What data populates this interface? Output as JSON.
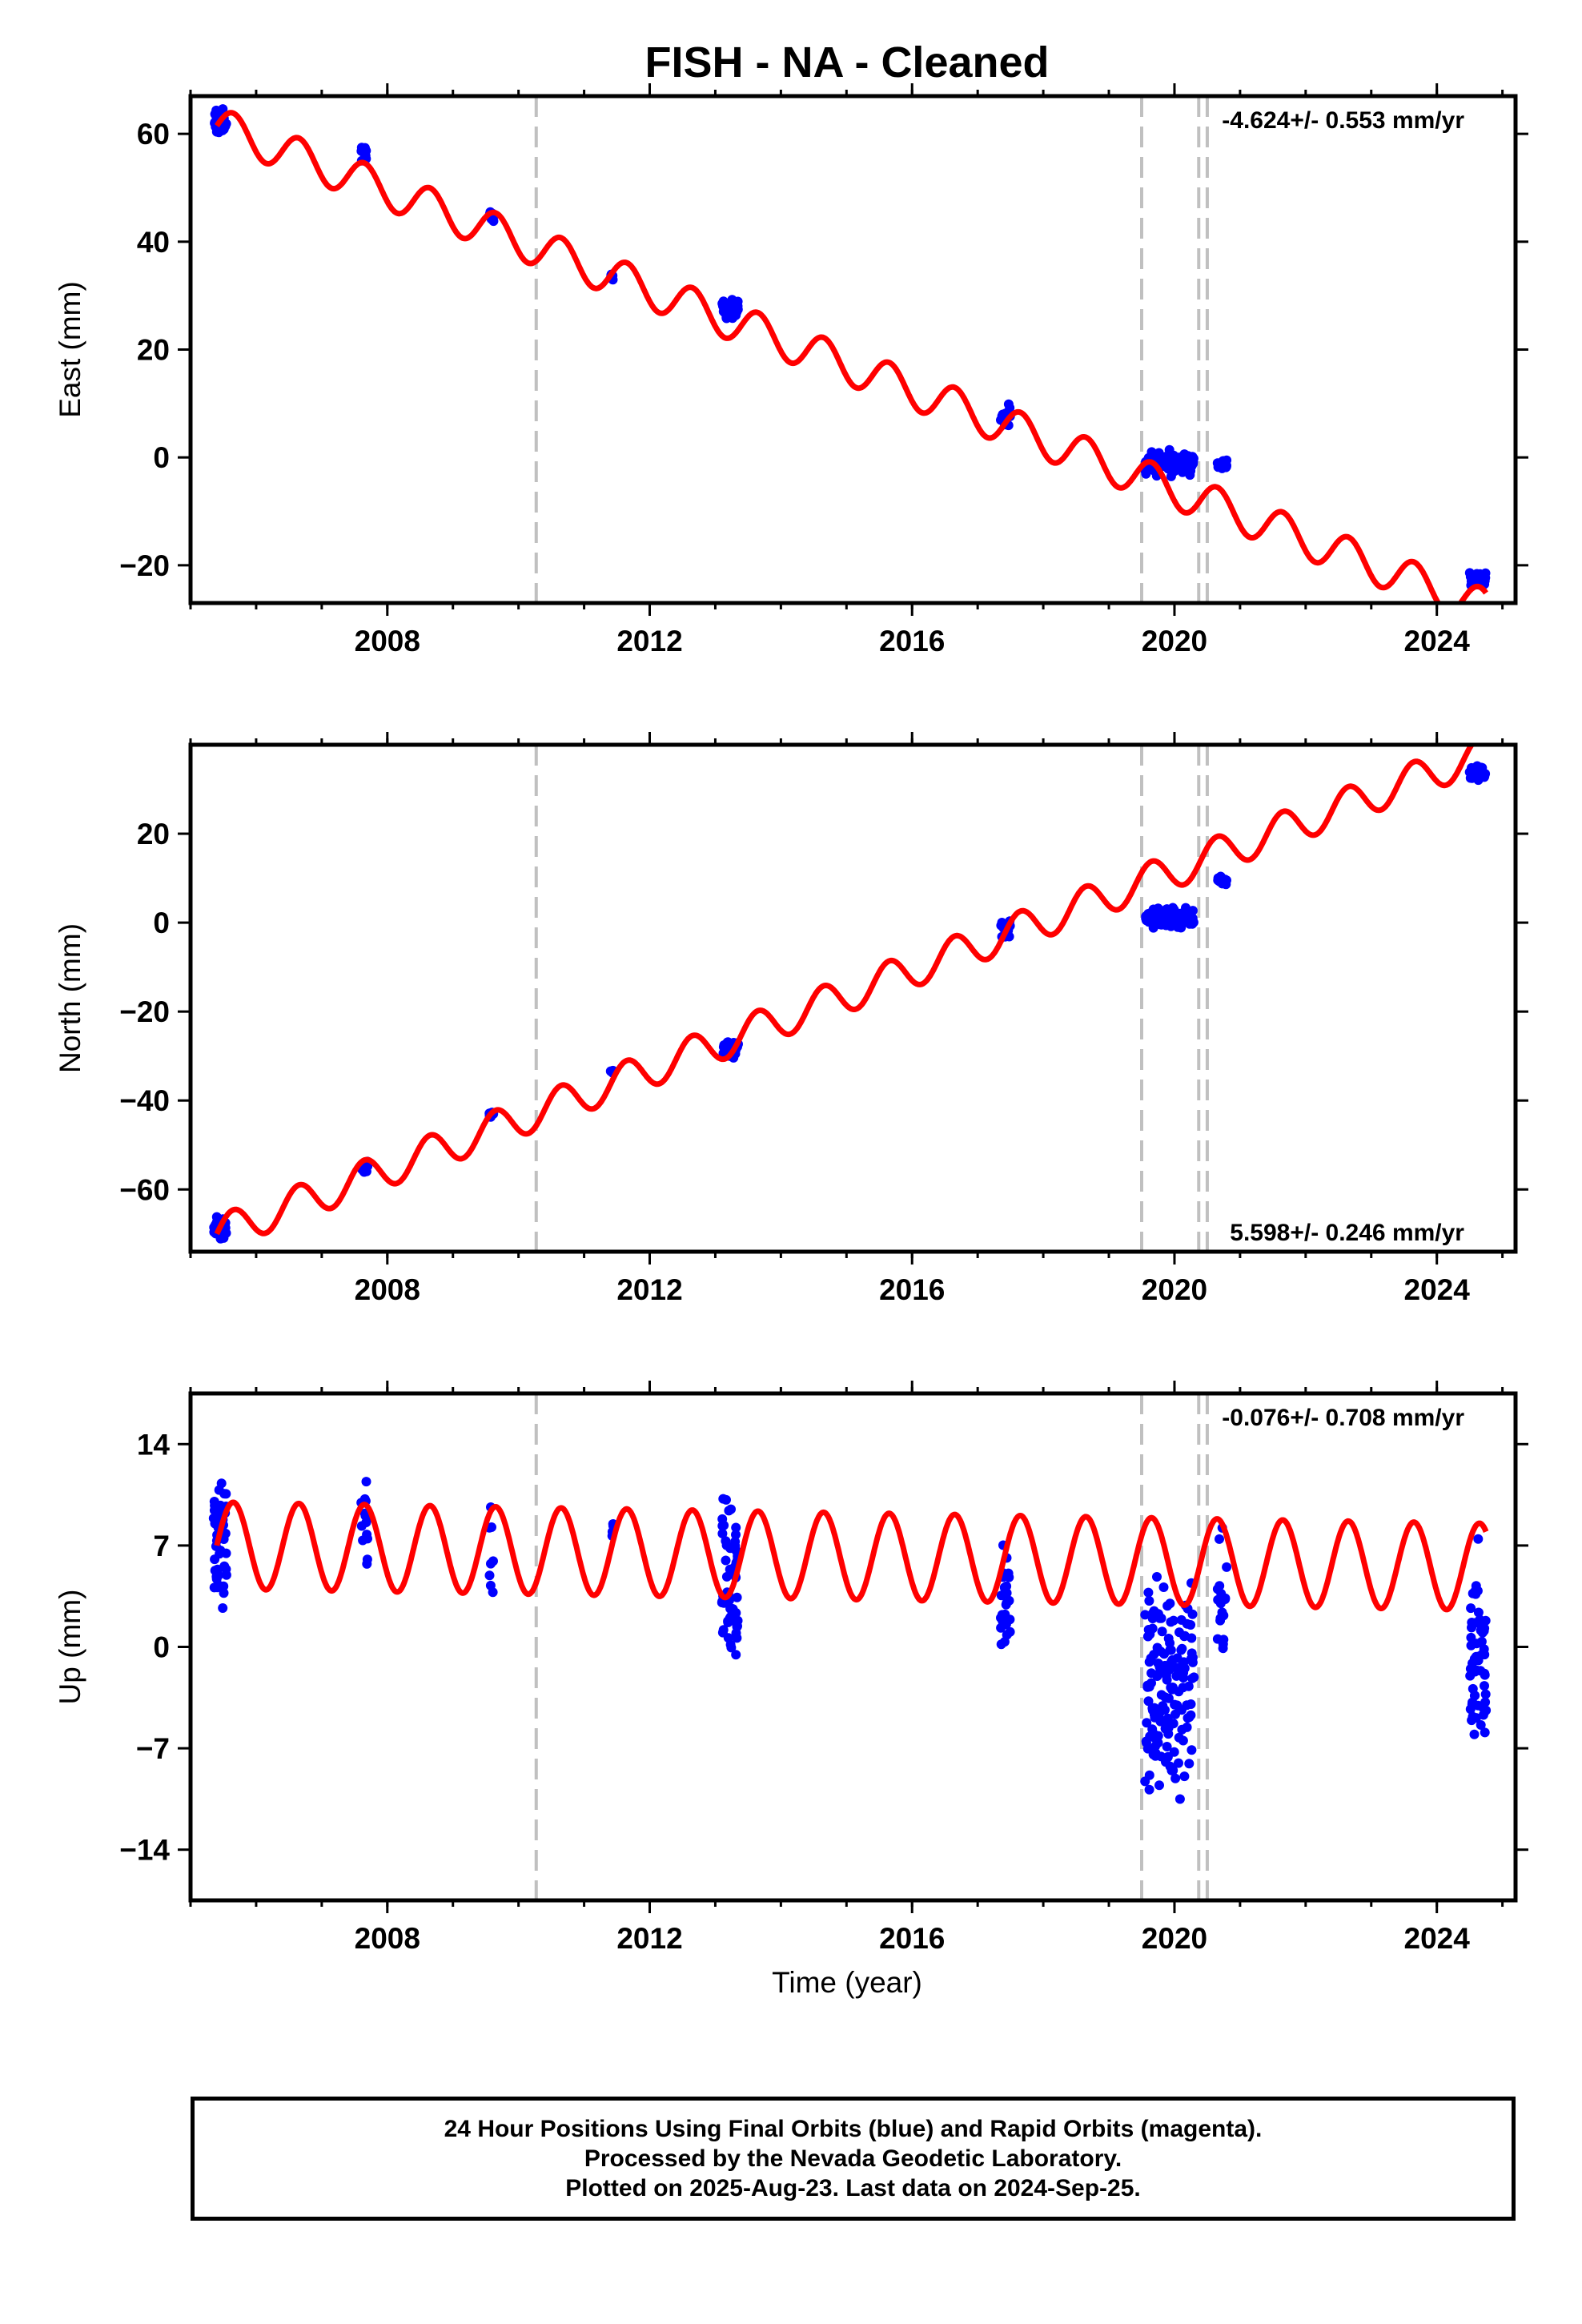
{
  "title": "FISH  - NA - Cleaned",
  "x_axis_label": "Time (year)",
  "caption": {
    "line1": "24 Hour Positions Using Final Orbits (blue) and Rapid Orbits (magenta).",
    "line2": "Processed by the Nevada Geodetic Laboratory.",
    "line3": "Plotted on 2025-Aug-23. Last data on 2024-Sep-25."
  },
  "colors": {
    "observations": "#0000ff",
    "model": "#ff0000",
    "event_lines": "#c0c0c0"
  },
  "chart_data": [
    {
      "type": "scatter",
      "ylabel": "East (mm)",
      "rate_label": "-4.624+/- 0.553 mm/yr",
      "rate_label_position": "top-right",
      "xlim": [
        2005.0,
        2025.2
      ],
      "ylim": [
        -27,
        67
      ],
      "x_ticks": [
        2008,
        2012,
        2016,
        2020,
        2024
      ],
      "y_ticks": [
        -20,
        0,
        20,
        40,
        60
      ],
      "event_lines": [
        2010.27,
        2019.5,
        2020.37,
        2020.5
      ],
      "model": {
        "trend_rate_mm_per_yr": -4.624,
        "value_at_2005_4": 61.5,
        "seasonal_amplitude": 3.5
      },
      "observation_clusters": [
        {
          "t_start": 2005.35,
          "t_end": 2005.55,
          "center": 62.0,
          "spread": 3.5,
          "count": 40
        },
        {
          "t_start": 2007.6,
          "t_end": 2007.7,
          "center": 56.5,
          "spread": 2.0,
          "count": 14
        },
        {
          "t_start": 2009.55,
          "t_end": 2009.62,
          "center": 44.5,
          "spread": 1.5,
          "count": 8
        },
        {
          "t_start": 2011.4,
          "t_end": 2011.45,
          "center": 33.5,
          "spread": 0.8,
          "count": 4
        },
        {
          "t_start": 2013.1,
          "t_end": 2013.35,
          "center": 27.5,
          "spread": 2.5,
          "count": 30
        },
        {
          "t_start": 2017.35,
          "t_end": 2017.5,
          "center": 8.0,
          "spread": 3.0,
          "count": 18
        },
        {
          "t_start": 2019.55,
          "t_end": 2020.3,
          "center": -1.0,
          "spread": 3.0,
          "count": 110
        },
        {
          "t_start": 2020.65,
          "t_end": 2020.8,
          "center": -1.5,
          "spread": 1.5,
          "count": 14
        },
        {
          "t_start": 2024.5,
          "t_end": 2024.75,
          "center": -22.5,
          "spread": 2.0,
          "count": 45
        }
      ]
    },
    {
      "type": "scatter",
      "ylabel": "North (mm)",
      "rate_label": "5.598+/- 0.246 mm/yr",
      "rate_label_position": "bottom-right",
      "xlim": [
        2005.0,
        2025.2
      ],
      "ylim": [
        -74,
        40
      ],
      "x_ticks": [
        2008,
        2012,
        2016,
        2020,
        2024
      ],
      "y_ticks": [
        -60,
        -40,
        -20,
        0,
        20
      ],
      "event_lines": [
        2010.27,
        2019.5,
        2020.37,
        2020.5
      ],
      "model": {
        "trend_rate_mm_per_yr": 5.598,
        "value_at_2005_4": -70.0,
        "seasonal_amplitude": 4.0
      },
      "observation_clusters": [
        {
          "t_start": 2005.35,
          "t_end": 2005.55,
          "center": -68.5,
          "spread": 3.0,
          "count": 35
        },
        {
          "t_start": 2007.6,
          "t_end": 2007.7,
          "center": -55.0,
          "spread": 2.0,
          "count": 12
        },
        {
          "t_start": 2009.55,
          "t_end": 2009.62,
          "center": -43.0,
          "spread": 1.5,
          "count": 8
        },
        {
          "t_start": 2011.4,
          "t_end": 2011.45,
          "center": -33.5,
          "spread": 0.8,
          "count": 4
        },
        {
          "t_start": 2013.1,
          "t_end": 2013.35,
          "center": -28.5,
          "spread": 2.5,
          "count": 30
        },
        {
          "t_start": 2017.35,
          "t_end": 2017.5,
          "center": -1.0,
          "spread": 3.0,
          "count": 18
        },
        {
          "t_start": 2019.55,
          "t_end": 2020.3,
          "center": 1.0,
          "spread": 3.0,
          "count": 110
        },
        {
          "t_start": 2020.65,
          "t_end": 2020.8,
          "center": 9.5,
          "spread": 1.2,
          "count": 14
        },
        {
          "t_start": 2024.5,
          "t_end": 2024.75,
          "center": 33.5,
          "spread": 2.0,
          "count": 45
        }
      ]
    },
    {
      "type": "scatter",
      "ylabel": "Up (mm)",
      "rate_label": "-0.076+/- 0.708 mm/yr",
      "rate_label_position": "top-right",
      "xlim": [
        2005.0,
        2025.2
      ],
      "ylim": [
        -17.5,
        17.5
      ],
      "x_ticks": [
        2008,
        2012,
        2016,
        2020,
        2024
      ],
      "y_ticks": [
        -14,
        -7,
        0,
        7,
        14
      ],
      "event_lines": [
        2010.27,
        2019.5,
        2020.37,
        2020.5
      ],
      "model": {
        "trend_rate_mm_per_yr": -0.076,
        "value_at_2005_4": 7.0,
        "seasonal_amplitude": 3.0
      },
      "observation_clusters": [
        {
          "t_start": 2005.35,
          "t_end": 2005.55,
          "center": 7.0,
          "spread": 7.0,
          "count": 45
        },
        {
          "t_start": 2007.6,
          "t_end": 2007.7,
          "center": 8.0,
          "spread": 4.5,
          "count": 14
        },
        {
          "t_start": 2009.55,
          "t_end": 2009.62,
          "center": 7.0,
          "spread": 6.0,
          "count": 8
        },
        {
          "t_start": 2011.4,
          "t_end": 2011.45,
          "center": 8.0,
          "spread": 1.5,
          "count": 4
        },
        {
          "t_start": 2013.1,
          "t_end": 2013.35,
          "center": 3.5,
          "spread": 9.0,
          "count": 60
        },
        {
          "t_start": 2017.35,
          "t_end": 2017.5,
          "center": 3.0,
          "spread": 6.0,
          "count": 25
        },
        {
          "t_start": 2019.55,
          "t_end": 2020.3,
          "center": -3.0,
          "spread": 11.0,
          "count": 150
        },
        {
          "t_start": 2020.65,
          "t_end": 2020.8,
          "center": 3.0,
          "spread": 6.0,
          "count": 18
        },
        {
          "t_start": 2024.5,
          "t_end": 2024.75,
          "center": -1.0,
          "spread": 10.0,
          "count": 60
        }
      ]
    }
  ]
}
